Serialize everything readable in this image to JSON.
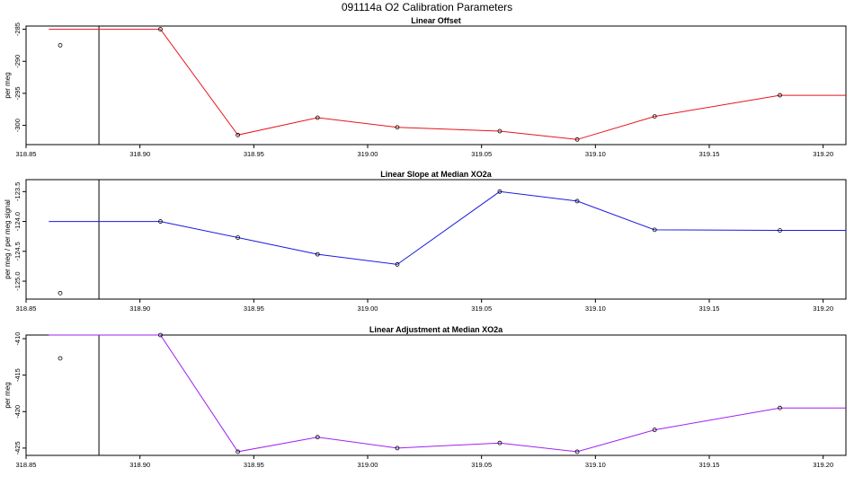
{
  "figure": {
    "title": "091114a   O2 Calibration Parameters"
  },
  "chart_data": [
    {
      "type": "line",
      "title": "Linear Offset",
      "xlabel": "",
      "ylabel": "per meg",
      "color": "#e8141c",
      "xlim": [
        318.85,
        319.21
      ],
      "ylim": [
        -303,
        -284.5
      ],
      "x_ticks": [
        "318.85",
        "318.90",
        "318.95",
        "319.00",
        "319.05",
        "319.10",
        "319.15",
        "319.20"
      ],
      "x_tick_values": [
        318.85,
        318.9,
        318.95,
        319.0,
        319.05,
        319.1,
        319.15,
        319.2
      ],
      "y_ticks": [
        "-285",
        "-290",
        "-295",
        "-300"
      ],
      "y_tick_values": [
        -285,
        -290,
        -295,
        -300
      ],
      "vline_x": 318.882,
      "outlier": {
        "x": 318.865,
        "y": -287.5
      },
      "line_x": [
        318.86,
        318.909,
        318.943,
        318.978,
        319.013,
        319.058,
        319.092,
        319.126,
        319.181,
        319.21
      ],
      "line_y": [
        -285.0,
        -285.0,
        -301.5,
        -298.8,
        -300.3,
        -300.9,
        -302.2,
        -298.6,
        -295.3,
        -295.3
      ],
      "points_x": [
        318.909,
        318.943,
        318.978,
        319.013,
        319.058,
        319.092,
        319.126,
        319.181
      ],
      "points_y": [
        -285.0,
        -301.5,
        -298.8,
        -300.3,
        -300.9,
        -302.2,
        -298.6,
        -295.3
      ]
    },
    {
      "type": "line",
      "title": "Linear Slope at Median XO2a",
      "xlabel": "",
      "ylabel": "per meg / per meg signal",
      "color": "#1a1ae0",
      "xlim": [
        318.85,
        319.21
      ],
      "ylim": [
        -125.3,
        -123.3
      ],
      "x_ticks": [
        "318.85",
        "318.90",
        "318.95",
        "319.00",
        "319.05",
        "319.10",
        "319.15",
        "319.20"
      ],
      "x_tick_values": [
        318.85,
        318.9,
        318.95,
        319.0,
        319.05,
        319.1,
        319.15,
        319.2
      ],
      "y_ticks": [
        "-123.5",
        "-124.0",
        "-124.5",
        "-125.0"
      ],
      "y_tick_values": [
        -123.5,
        -124.0,
        -124.5,
        -125.0
      ],
      "vline_x": 318.882,
      "outlier": {
        "x": 318.865,
        "y": -125.2
      },
      "line_x": [
        318.86,
        318.909,
        318.943,
        318.978,
        319.013,
        319.058,
        319.092,
        319.126,
        319.181,
        319.21
      ],
      "line_y": [
        -124.0,
        -124.0,
        -124.27,
        -124.55,
        -124.72,
        -123.5,
        -123.66,
        -124.14,
        -124.15,
        -124.15
      ],
      "points_x": [
        318.909,
        318.943,
        318.978,
        319.013,
        319.058,
        319.092,
        319.126,
        319.181
      ],
      "points_y": [
        -124.0,
        -124.27,
        -124.55,
        -124.72,
        -123.5,
        -123.66,
        -124.14,
        -124.15
      ]
    },
    {
      "type": "line",
      "title": "Linear Adjustment at Median XO2a",
      "xlabel": "",
      "ylabel": "per meg",
      "color": "#a020f0",
      "xlim": [
        318.85,
        319.21
      ],
      "ylim": [
        -426,
        -409.5
      ],
      "x_ticks": [
        "318.85",
        "318.90",
        "318.95",
        "319.00",
        "319.05",
        "319.10",
        "319.15",
        "319.20"
      ],
      "x_tick_values": [
        318.85,
        318.9,
        318.95,
        319.0,
        319.05,
        319.1,
        319.15,
        319.2
      ],
      "y_ticks": [
        "-410",
        "-415",
        "-420",
        "-425"
      ],
      "y_tick_values": [
        -410,
        -415,
        -420,
        -425
      ],
      "vline_x": 318.882,
      "outlier": {
        "x": 318.865,
        "y": -412.7
      },
      "line_x": [
        318.86,
        318.909,
        318.943,
        318.978,
        319.013,
        319.058,
        319.092,
        319.126,
        319.181,
        319.21
      ],
      "line_y": [
        -409.5,
        -409.5,
        -425.5,
        -423.5,
        -425.0,
        -424.3,
        -425.5,
        -422.5,
        -419.5,
        -419.5
      ],
      "points_x": [
        318.909,
        318.943,
        318.978,
        319.013,
        319.058,
        319.092,
        319.126,
        319.181
      ],
      "points_y": [
        -409.5,
        -425.5,
        -423.5,
        -425.0,
        -424.3,
        -425.5,
        -422.5,
        -419.5
      ]
    }
  ]
}
